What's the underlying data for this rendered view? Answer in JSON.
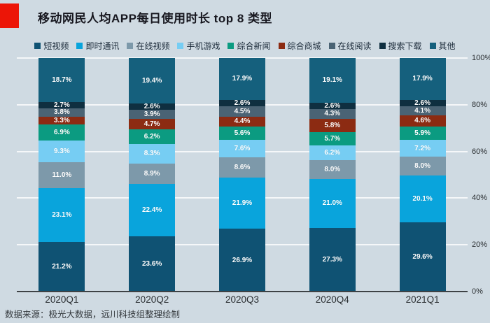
{
  "title": "移动网民人均APP每日使用时长 top 8 类型",
  "footer": "数据来源：极光大数据，远川科技组整理绘制",
  "colors": {
    "background": "#CFDAE2",
    "accent_red": "#EC1507",
    "grid": "#FFFFFF",
    "axis": "#3E4245",
    "data_label": "#FFFFFF"
  },
  "chart_data": {
    "type": "bar",
    "stacked": true,
    "grid": true,
    "legend_position": "top",
    "categories": [
      "2020Q1",
      "2020Q2",
      "2020Q3",
      "2020Q4",
      "2021Q1"
    ],
    "series": [
      {
        "name": "短视频",
        "color": "#0F5273",
        "values": [
          21.2,
          23.6,
          26.9,
          27.3,
          29.6
        ]
      },
      {
        "name": "即时通讯",
        "color": "#09A4DC",
        "values": [
          23.1,
          22.4,
          21.9,
          21.0,
          20.1
        ]
      },
      {
        "name": "在线视频",
        "color": "#7D99AA",
        "values": [
          11.0,
          8.9,
          8.6,
          8.0,
          8.0
        ]
      },
      {
        "name": "手机游戏",
        "color": "#76CDF3",
        "values": [
          9.3,
          8.3,
          7.6,
          6.2,
          7.2
        ]
      },
      {
        "name": "综合新闻",
        "color": "#0B9B81",
        "values": [
          6.9,
          6.2,
          5.6,
          5.7,
          5.9
        ]
      },
      {
        "name": "综合商城",
        "color": "#8C2B12",
        "values": [
          3.3,
          4.7,
          4.4,
          5.8,
          4.6
        ]
      },
      {
        "name": "在线阅读",
        "color": "#4A6374",
        "values": [
          3.8,
          3.9,
          4.5,
          4.3,
          4.1
        ]
      },
      {
        "name": "搜索下载",
        "color": "#0F2F40",
        "values": [
          2.7,
          2.6,
          2.6,
          2.6,
          2.6
        ]
      },
      {
        "name": "其他",
        "color": "#15607D",
        "values": [
          18.7,
          19.4,
          17.9,
          19.1,
          17.9
        ]
      }
    ],
    "ylim": [
      0,
      100
    ],
    "yticks": [
      "0%",
      "20%",
      "40%",
      "60%",
      "80%",
      "100%"
    ],
    "ytick_values": [
      0,
      20,
      40,
      60,
      80,
      100
    ]
  }
}
